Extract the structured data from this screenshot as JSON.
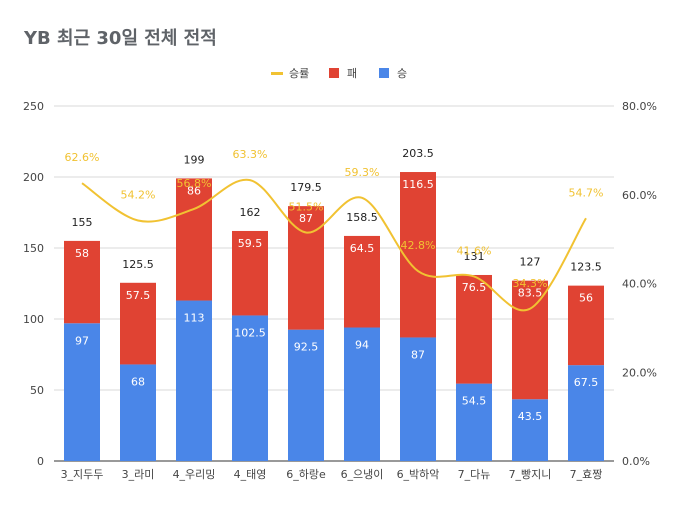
{
  "chart_data": {
    "type": "bar",
    "stacked": true,
    "title": "YB 최근 30일 전체 전적",
    "categories": [
      "3_지두두",
      "3_라미",
      "4_우리밍",
      "4_태영",
      "6_하랑e",
      "6_으냉이",
      "6_박하악",
      "7_다뉴",
      "7_빵지니",
      "7_효짱"
    ],
    "series": [
      {
        "name": "승",
        "color": "#4a86e8",
        "values": [
          97,
          68,
          113,
          102.5,
          92.5,
          94,
          87,
          54.5,
          43.5,
          67.5
        ]
      },
      {
        "name": "패",
        "color": "#e04333",
        "values": [
          58,
          57.5,
          86,
          59.5,
          87,
          64.5,
          116.5,
          76.5,
          83.5,
          56
        ]
      },
      {
        "name": "승률",
        "color": "#f1c232",
        "type": "line",
        "axis": "right",
        "values": [
          62.6,
          54.2,
          56.8,
          63.3,
          51.5,
          59.3,
          42.8,
          41.6,
          34.3,
          54.7
        ],
        "labels": [
          "62.6%",
          "54.2%",
          "56.8%",
          "63.3%",
          "51.5%",
          "59.3%",
          "42.8%",
          "41.6%",
          "34.3%",
          "54.7%"
        ]
      }
    ],
    "totals": [
      "155",
      "125.5",
      "199",
      "162",
      "179.5",
      "158.5",
      "203.5",
      "131",
      "127",
      "123.5"
    ],
    "win_labels": [
      "97",
      "68",
      "113",
      "102.5",
      "92.5",
      "94",
      "87",
      "54.5",
      "43.5",
      "67.5"
    ],
    "loss_labels": [
      "58",
      "57.5",
      "86",
      "59.5",
      "87",
      "64.5",
      "116.5",
      "76.5",
      "83.5",
      "56"
    ],
    "ylim": [
      0,
      250
    ],
    "y_ticks": [
      "0",
      "50",
      "100",
      "150",
      "200",
      "250"
    ],
    "y2lim": [
      0,
      80
    ],
    "y2_ticks": [
      "0.0%",
      "20.0%",
      "40.0%",
      "60.0%",
      "80.0%"
    ],
    "legend": {
      "position": "top",
      "items": [
        "승률",
        "패",
        "승"
      ]
    },
    "grid": true
  }
}
